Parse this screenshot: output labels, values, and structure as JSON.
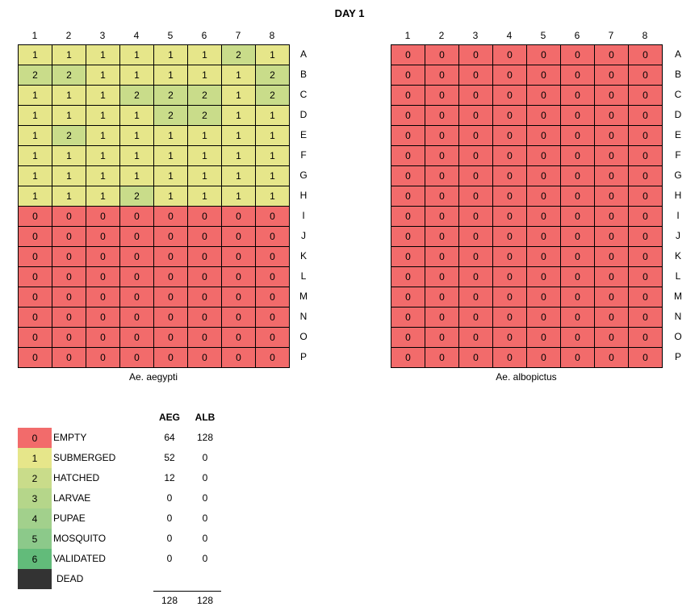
{
  "title": "DAY 1",
  "columns": [
    "1",
    "2",
    "3",
    "4",
    "5",
    "6",
    "7",
    "8"
  ],
  "rows": [
    "A",
    "B",
    "C",
    "D",
    "E",
    "F",
    "G",
    "H",
    "I",
    "J",
    "K",
    "L",
    "M",
    "N",
    "O",
    "P"
  ],
  "status_colors": {
    "0": "#f26b6b",
    "1": "#e6e68a",
    "2": "#c9dc8a",
    "3": "#b5d68a",
    "4": "#a2d08c",
    "5": "#8cc98a",
    "6": "#62bb7a",
    "dead": "#333333"
  },
  "plates": [
    {
      "species": "Ae. aegypti",
      "cells": [
        [
          1,
          1,
          1,
          1,
          1,
          1,
          2,
          1
        ],
        [
          2,
          2,
          1,
          1,
          1,
          1,
          1,
          2
        ],
        [
          1,
          1,
          1,
          2,
          2,
          2,
          1,
          2
        ],
        [
          1,
          1,
          1,
          1,
          2,
          2,
          1,
          1
        ],
        [
          1,
          2,
          1,
          1,
          1,
          1,
          1,
          1
        ],
        [
          1,
          1,
          1,
          1,
          1,
          1,
          1,
          1
        ],
        [
          1,
          1,
          1,
          1,
          1,
          1,
          1,
          1
        ],
        [
          1,
          1,
          1,
          2,
          1,
          1,
          1,
          1
        ],
        [
          0,
          0,
          0,
          0,
          0,
          0,
          0,
          0
        ],
        [
          0,
          0,
          0,
          0,
          0,
          0,
          0,
          0
        ],
        [
          0,
          0,
          0,
          0,
          0,
          0,
          0,
          0
        ],
        [
          0,
          0,
          0,
          0,
          0,
          0,
          0,
          0
        ],
        [
          0,
          0,
          0,
          0,
          0,
          0,
          0,
          0
        ],
        [
          0,
          0,
          0,
          0,
          0,
          0,
          0,
          0
        ],
        [
          0,
          0,
          0,
          0,
          0,
          0,
          0,
          0
        ],
        [
          0,
          0,
          0,
          0,
          0,
          0,
          0,
          0
        ]
      ]
    },
    {
      "species": "Ae. albopictus",
      "cells": [
        [
          0,
          0,
          0,
          0,
          0,
          0,
          0,
          0
        ],
        [
          0,
          0,
          0,
          0,
          0,
          0,
          0,
          0
        ],
        [
          0,
          0,
          0,
          0,
          0,
          0,
          0,
          0
        ],
        [
          0,
          0,
          0,
          0,
          0,
          0,
          0,
          0
        ],
        [
          0,
          0,
          0,
          0,
          0,
          0,
          0,
          0
        ],
        [
          0,
          0,
          0,
          0,
          0,
          0,
          0,
          0
        ],
        [
          0,
          0,
          0,
          0,
          0,
          0,
          0,
          0
        ],
        [
          0,
          0,
          0,
          0,
          0,
          0,
          0,
          0
        ],
        [
          0,
          0,
          0,
          0,
          0,
          0,
          0,
          0
        ],
        [
          0,
          0,
          0,
          0,
          0,
          0,
          0,
          0
        ],
        [
          0,
          0,
          0,
          0,
          0,
          0,
          0,
          0
        ],
        [
          0,
          0,
          0,
          0,
          0,
          0,
          0,
          0
        ],
        [
          0,
          0,
          0,
          0,
          0,
          0,
          0,
          0
        ],
        [
          0,
          0,
          0,
          0,
          0,
          0,
          0,
          0
        ],
        [
          0,
          0,
          0,
          0,
          0,
          0,
          0,
          0
        ],
        [
          0,
          0,
          0,
          0,
          0,
          0,
          0,
          0
        ]
      ]
    }
  ],
  "legend": {
    "headers": {
      "aeg": "AEG",
      "alb": "ALB"
    },
    "items": [
      {
        "code": "0",
        "label": "EMPTY",
        "aeg": "64",
        "alb": "128",
        "color_key": "0"
      },
      {
        "code": "1",
        "label": "SUBMERGED",
        "aeg": "52",
        "alb": "0",
        "color_key": "1"
      },
      {
        "code": "2",
        "label": "HATCHED",
        "aeg": "12",
        "alb": "0",
        "color_key": "2"
      },
      {
        "code": "3",
        "label": "LARVAE",
        "aeg": "0",
        "alb": "0",
        "color_key": "3"
      },
      {
        "code": "4",
        "label": "PUPAE",
        "aeg": "0",
        "alb": "0",
        "color_key": "4"
      },
      {
        "code": "5",
        "label": "MOSQUITO",
        "aeg": "0",
        "alb": "0",
        "color_key": "5"
      },
      {
        "code": "6",
        "label": "VALIDATED",
        "aeg": "0",
        "alb": "0",
        "color_key": "6"
      },
      {
        "code": "",
        "label": "DEAD",
        "aeg": "",
        "alb": "",
        "color_key": "dead"
      }
    ],
    "totals": {
      "aeg": "128",
      "alb": "128"
    }
  }
}
